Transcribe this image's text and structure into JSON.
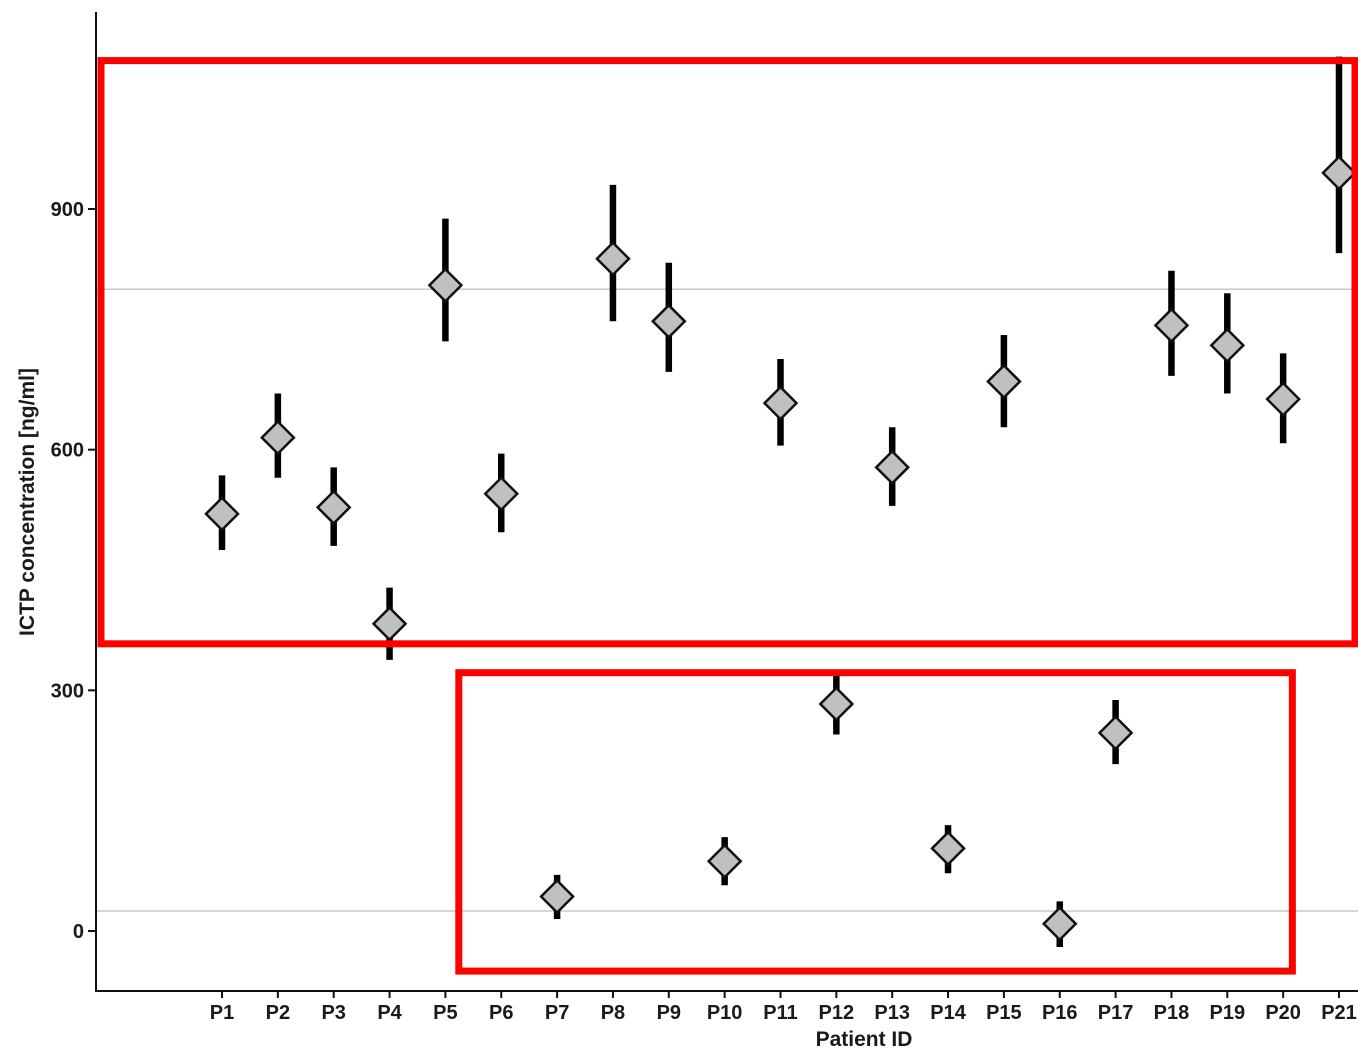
{
  "chart_data": {
    "type": "scatter",
    "title": "",
    "xlabel": "Patient ID",
    "ylabel": "ICTP concentration [ng/ml]",
    "ylim": [
      -75,
      1140
    ],
    "yticks": [
      0,
      300,
      600,
      900
    ],
    "grid": false,
    "reference_lines": [
      800,
      25
    ],
    "categories": [
      "P1",
      "P2",
      "P3",
      "P4",
      "P5",
      "P6",
      "P7",
      "P8",
      "P9",
      "P10",
      "P11",
      "P12",
      "P13",
      "P14",
      "P15",
      "P16",
      "P17",
      "P18",
      "P19",
      "P20",
      "P21"
    ],
    "values": [
      520,
      615,
      528,
      383,
      805,
      545,
      43,
      838,
      760,
      87,
      658,
      283,
      578,
      103,
      685,
      9,
      247,
      755,
      730,
      663,
      945
    ],
    "error_low": [
      475,
      565,
      480,
      338,
      735,
      497,
      15,
      760,
      697,
      57,
      605,
      245,
      530,
      72,
      628,
      -20,
      208,
      692,
      670,
      608,
      845
    ],
    "error_high": [
      568,
      670,
      578,
      428,
      888,
      595,
      70,
      930,
      833,
      117,
      713,
      318,
      628,
      132,
      743,
      37,
      288,
      823,
      795,
      720,
      1090
    ],
    "highlight_boxes": [
      {
        "x_from": "P1",
        "x_to": "P21",
        "y_from": 358,
        "y_to": 1085
      },
      {
        "x_from": "P7",
        "x_to": "P20",
        "y_from": -50,
        "y_to": 322
      }
    ],
    "colors": {
      "marker_fill": "#c0c0c0",
      "marker_edge": "#111111",
      "error_bar": "#000000",
      "reference_line": "#c8c8c8",
      "highlight": "#ff0000"
    }
  }
}
